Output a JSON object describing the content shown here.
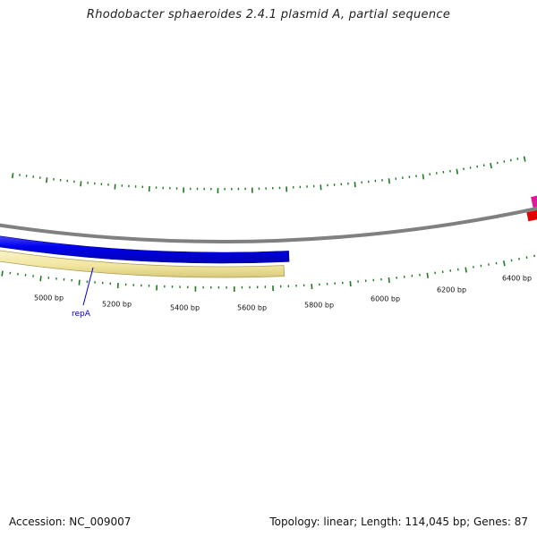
{
  "title": "Rhodobacter sphaeroides 2.4.1 plasmid A, partial sequence",
  "accession": "Accession: NC_009007",
  "stats": "Topology: linear; Length: 114,045 bp; Genes: 87",
  "colors": {
    "backbone": "#808080",
    "forward_feature": "#0000ee",
    "gene_feature": "#f2e6a0",
    "gene_feature_edge": "#a89c5a",
    "tick": "#1f7a1f",
    "gene_label": "#0000cc",
    "edge_feature_magenta": "#e0179b",
    "edge_feature_red": "#e00000"
  },
  "ticks": {
    "major_labels": [
      "5000 bp",
      "5200 bp",
      "5400 bp",
      "5600 bp",
      "5800 bp",
      "6000 bp",
      "6200 bp",
      "6400 bp"
    ]
  },
  "genes": [
    {
      "name": "repA"
    }
  ]
}
